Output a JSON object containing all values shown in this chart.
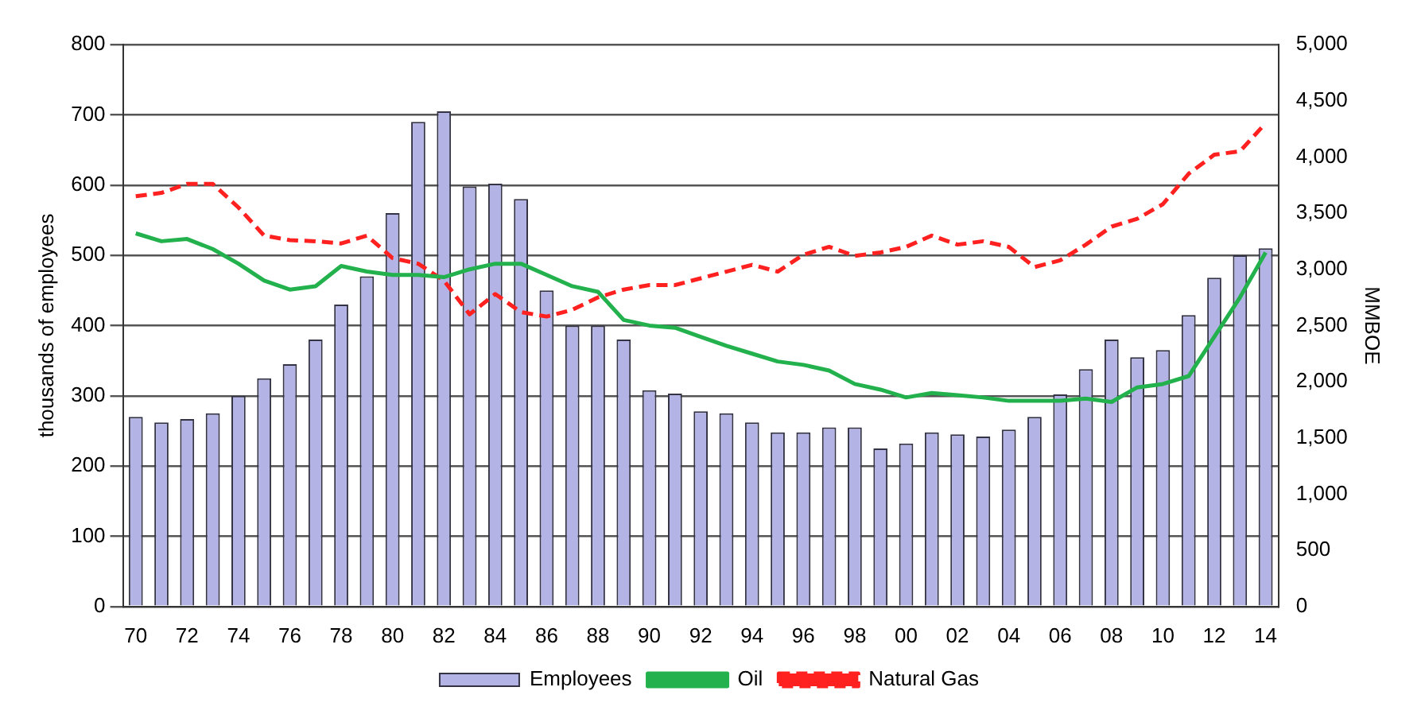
{
  "chart_data": {
    "type": "bar",
    "ylabel": "thousands of employees",
    "y2label": "MMBOE",
    "categories": [
      "70",
      null,
      "72",
      null,
      "74",
      null,
      "76",
      null,
      "78",
      null,
      "80",
      null,
      "82",
      null,
      "84",
      null,
      "86",
      null,
      "88",
      null,
      "90",
      null,
      "92",
      null,
      "94",
      null,
      "96",
      null,
      "98",
      null,
      "00",
      null,
      "02",
      null,
      "04",
      null,
      "06",
      null,
      "08",
      null,
      "10",
      null,
      "12",
      null,
      "14"
    ],
    "series": [
      {
        "name": "Employees",
        "color": "#b3b3e6",
        "values": [
          270,
          262,
          267,
          275,
          300,
          325,
          345,
          380,
          430,
          470,
          560,
          690,
          705,
          598,
          602,
          580,
          450,
          400,
          400,
          380,
          308,
          303,
          278,
          275,
          262,
          248,
          248,
          255,
          255,
          225,
          232,
          248,
          245,
          242,
          252,
          270,
          302,
          338,
          380,
          355,
          365,
          415,
          468,
          500,
          510
        ]
      },
      {
        "name": "Oil",
        "type": "line",
        "axis": "y2",
        "color": "#22b14c",
        "line_style": "solid",
        "values": [
          3320,
          3250,
          3270,
          3180,
          3050,
          2900,
          2820,
          2850,
          3030,
          2980,
          2950,
          2950,
          2930,
          3000,
          3050,
          3050,
          2950,
          2850,
          2800,
          2550,
          2500,
          2480,
          2400,
          2320,
          2250,
          2180,
          2150,
          2100,
          1980,
          1930,
          1860,
          1900,
          1880,
          1860,
          1830,
          1830,
          1830,
          1850,
          1820,
          1950,
          1980,
          2050,
          2400,
          2750,
          3150
        ]
      },
      {
        "name": "Natural Gas",
        "type": "line",
        "axis": "y2",
        "color": "#ff2020",
        "line_style": "dashed",
        "values": [
          3650,
          3680,
          3760,
          3760,
          3550,
          3300,
          3260,
          3250,
          3230,
          3300,
          3100,
          3050,
          2900,
          2600,
          2780,
          2620,
          2580,
          2640,
          2750,
          2820,
          2860,
          2860,
          2920,
          2980,
          3040,
          2980,
          3130,
          3200,
          3120,
          3150,
          3200,
          3300,
          3220,
          3250,
          3200,
          3020,
          3080,
          3220,
          3380,
          3450,
          3580,
          3850,
          4020,
          4050,
          4300
        ]
      }
    ],
    "ylim": [
      0,
      800
    ],
    "yticks": [
      0,
      100,
      200,
      300,
      400,
      500,
      600,
      700,
      800
    ],
    "y2lim": [
      0,
      5000
    ],
    "y2ticks": [
      0,
      {
        "value": 500,
        "label": "500"
      },
      {
        "value": 1000,
        "label": "1,000"
      },
      {
        "value": 1500,
        "label": "1,500"
      },
      {
        "value": 2000,
        "label": "2,000"
      },
      {
        "value": 2500,
        "label": "2,500"
      },
      {
        "value": 3000,
        "label": "3,000"
      },
      {
        "value": 3500,
        "label": "3,500"
      },
      {
        "value": 4000,
        "label": "4,000"
      },
      {
        "value": 4500,
        "label": "4,500"
      },
      {
        "value": 5000,
        "label": "5,000"
      }
    ],
    "grid": "y",
    "legend": "bottom",
    "marker": "none"
  }
}
